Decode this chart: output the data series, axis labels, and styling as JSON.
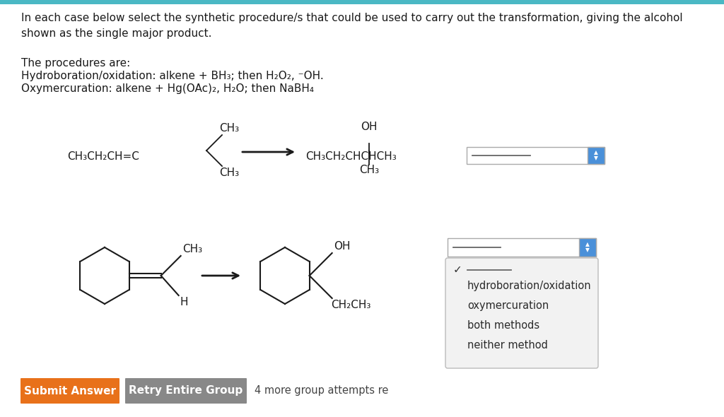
{
  "bg_color": "#ffffff",
  "header_text": "In each case below select the synthetic procedure/s that could be used to carry out the transformation, giving the alcohol\nshown as the single major product.",
  "procedures_title": "The procedures are:",
  "procedure1": "Hydroboration/oxidation: alkene + BH₃; then H₂O₂, ⁻OH.",
  "procedure2": "Oxymercuration: alkene + Hg(OAc)₂, H₂O; then NaBH₄",
  "dropdown_options": [
    "hydroboration/oxidation",
    "oxymercuration",
    "both methods",
    "neither method"
  ],
  "btn1_text": "Submit Answer",
  "btn1_color": "#e8711a",
  "btn2_text": "Retry Entire Group",
  "btn2_color": "#888888",
  "attempts_text": "4 more group attempts re",
  "top_bar_color": "#4ab8c4",
  "dropdown_arrow_color": "#4a90d9",
  "dropdown_bg": "#f0f0f0",
  "dropdown_border": "#aaaaaa"
}
